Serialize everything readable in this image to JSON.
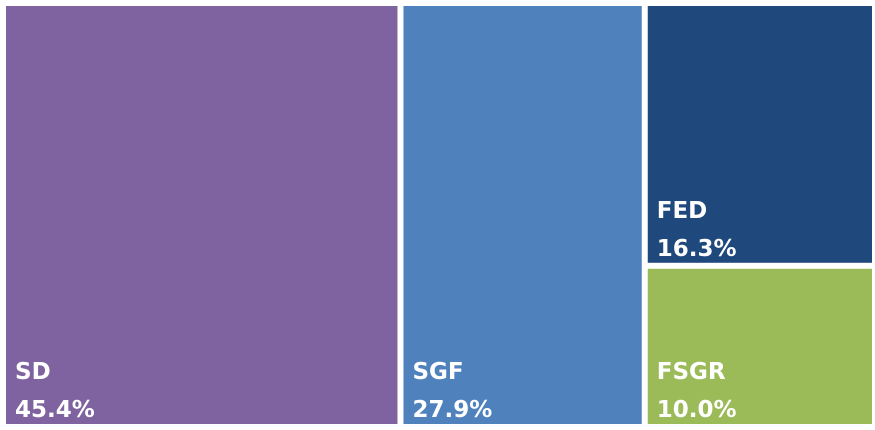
{
  "chart_data": {
    "type": "treemap",
    "categories": [
      "SD",
      "SGF",
      "FED",
      "FSGR"
    ],
    "values": [
      45.4,
      27.9,
      16.3,
      10.0
    ],
    "value_labels": [
      "45.4%",
      "27.9%",
      "16.3%",
      "10.0%"
    ],
    "colors": [
      "#7f63a1",
      "#4f81bd",
      "#1f497d",
      "#9bbb59"
    ]
  }
}
